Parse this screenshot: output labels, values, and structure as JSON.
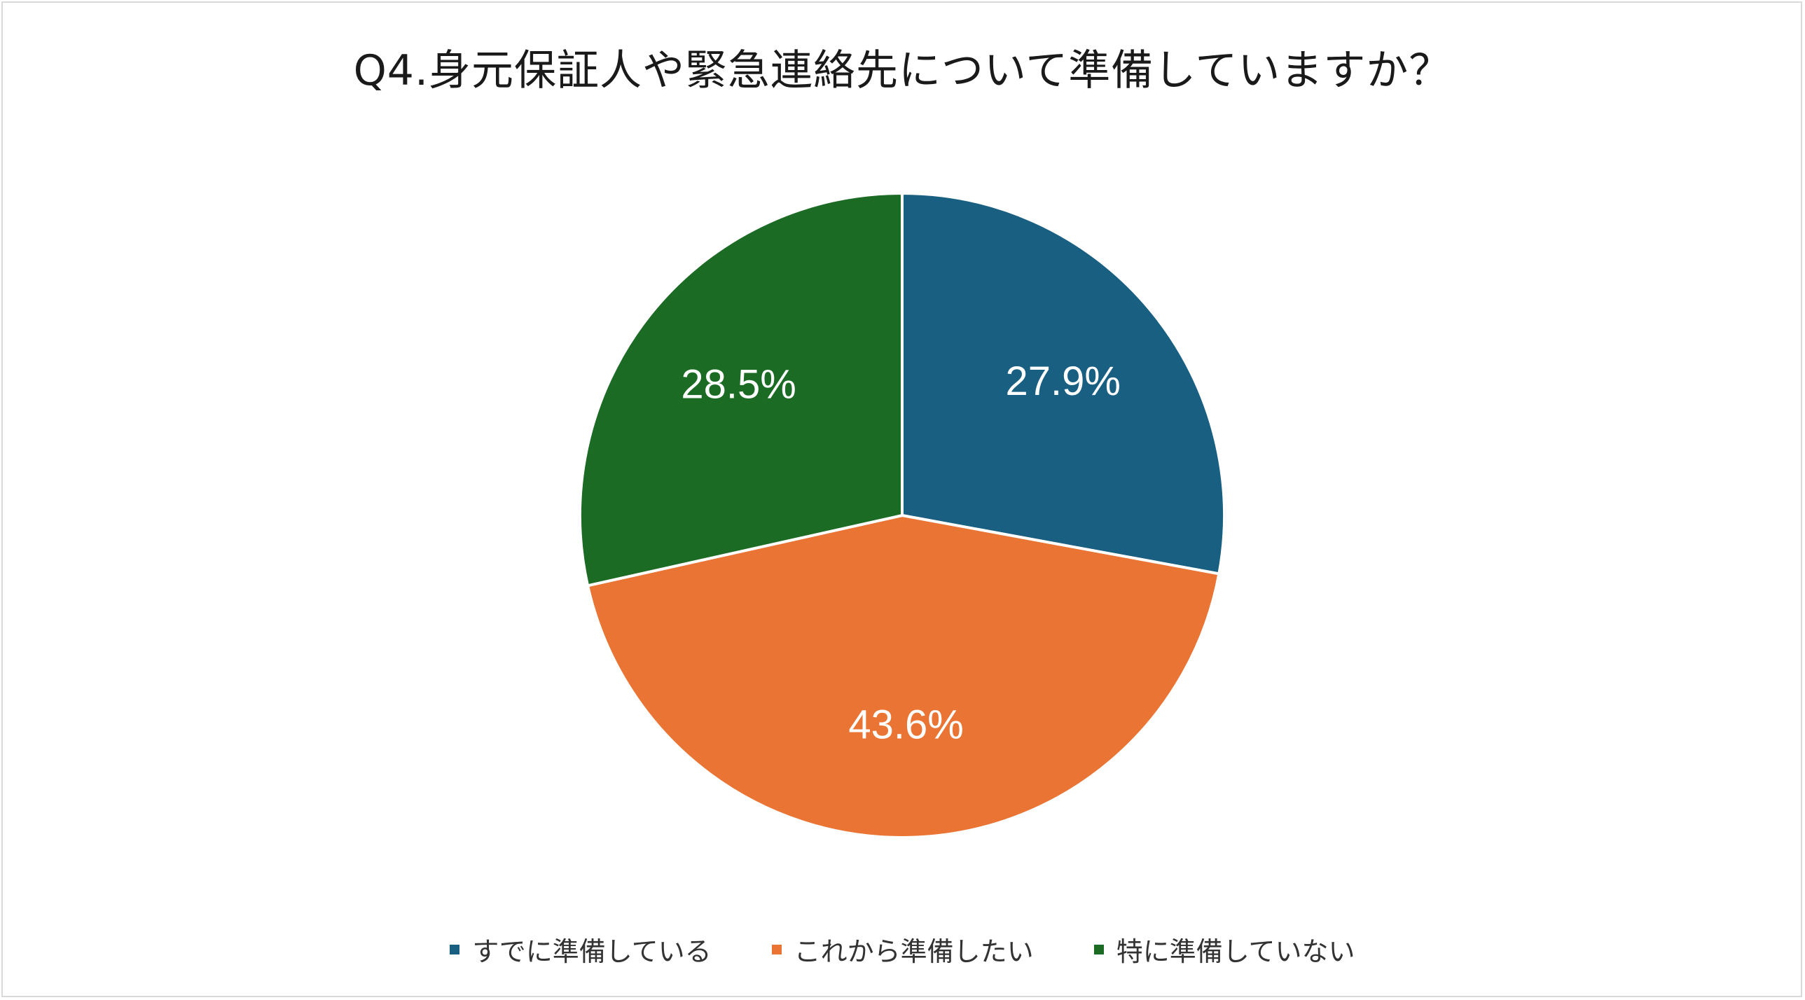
{
  "chart_data": {
    "type": "pie",
    "title": "Q4.身元保証人や緊急連絡先について準備していますか？",
    "categories": [
      "すでに準備している",
      "これから準備したい",
      "特に準備していない"
    ],
    "values": [
      27.9,
      43.6,
      28.5
    ],
    "data_labels": [
      "27.9%",
      "43.6%",
      "28.5%"
    ],
    "colors": [
      "#185f82",
      "#e97433",
      "#1b6b24"
    ],
    "start_angle_deg": 0,
    "direction": "clockwise",
    "legend_position": "bottom",
    "label_color": "#ffffff",
    "slice_border_color": "#ffffff"
  }
}
